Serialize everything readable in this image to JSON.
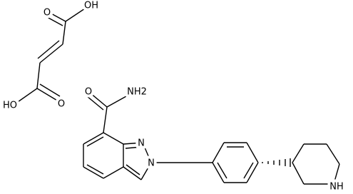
{
  "atoms": [
    "O",
    "OH",
    "HO",
    "O",
    "O",
    "NH2",
    "N",
    "N",
    "NH"
  ]
}
